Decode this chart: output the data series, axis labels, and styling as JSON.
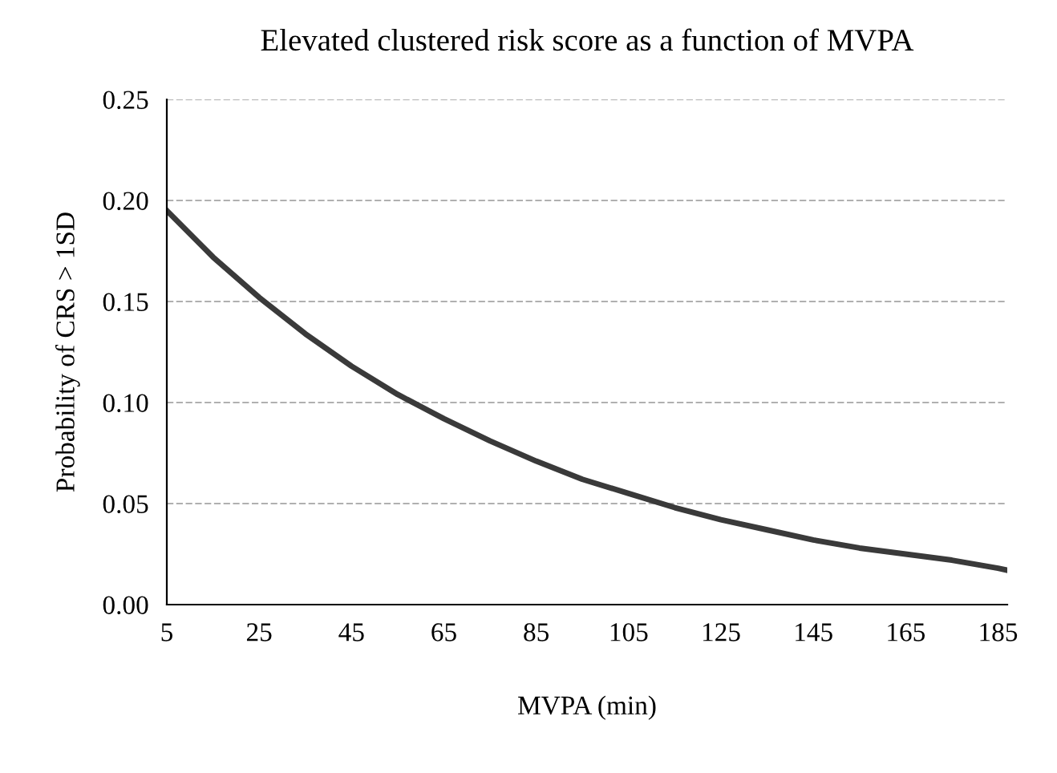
{
  "chart_data": {
    "type": "line",
    "title": "Elevated clustered risk score as a function of MVPA",
    "xlabel": "MVPA (min)",
    "ylabel": "Probability of CRS > 1SD",
    "x": [
      5,
      15,
      25,
      35,
      45,
      55,
      65,
      75,
      85,
      95,
      105,
      115,
      125,
      135,
      145,
      155,
      165,
      175,
      185,
      187
    ],
    "series": [
      {
        "color": "#3a3a3a",
        "values": [
          0.195,
          0.172,
          0.152,
          0.134,
          0.118,
          0.104,
          0.092,
          0.081,
          0.071,
          0.062,
          0.055,
          0.048,
          0.042,
          0.037,
          0.032,
          0.028,
          0.025,
          0.022,
          0.018,
          0.017
        ]
      }
    ],
    "xlim": [
      5,
      187
    ],
    "xticks": [
      5,
      25,
      45,
      65,
      85,
      105,
      125,
      145,
      165,
      185
    ],
    "ylim": [
      0,
      0.25
    ],
    "yticks": [
      {
        "value": 0,
        "label": "0.00"
      },
      {
        "value": 0.05,
        "label": "0.05"
      },
      {
        "value": 0.1,
        "label": "0.10"
      },
      {
        "value": 0.15,
        "label": "0.15"
      },
      {
        "value": 0.2,
        "label": "0.20"
      },
      {
        "value": 0.25,
        "label": "0.25"
      }
    ],
    "grid": "y",
    "line_style": "solid",
    "marker": "none",
    "legend": false
  }
}
